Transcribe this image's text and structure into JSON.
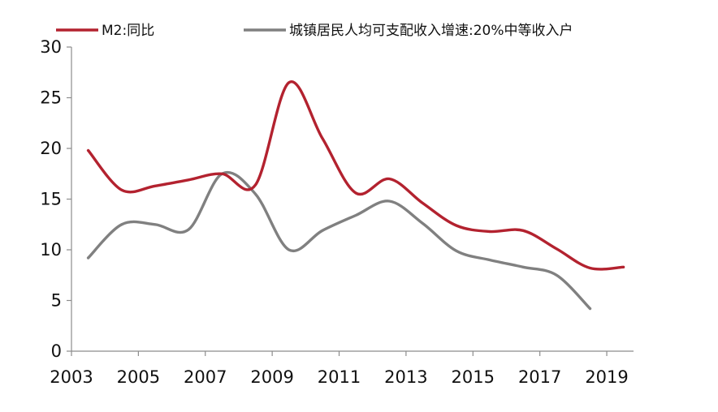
{
  "chart_data": {
    "type": "line",
    "title": "",
    "xlabel": "",
    "ylabel": "",
    "xlim": [
      2003,
      2019.8
    ],
    "ylim": [
      0,
      30
    ],
    "grid": false,
    "legend_position": "top",
    "x_ticks": [
      2003,
      2005,
      2007,
      2009,
      2011,
      2013,
      2015,
      2017,
      2019
    ],
    "y_ticks": [
      0,
      5,
      10,
      15,
      20,
      25,
      30
    ],
    "x_tick_labels": [
      "2003",
      "2005",
      "2007",
      "2009",
      "2011",
      "2013",
      "2015",
      "2017",
      "2019"
    ],
    "y_tick_labels": [
      "0",
      "5",
      "10",
      "15",
      "20",
      "25",
      "30"
    ],
    "series": [
      {
        "name": "M2:同比",
        "color": "#b3222f",
        "x": [
          2003.5,
          2004.5,
          2005.5,
          2006.5,
          2007.5,
          2008.5,
          2009.5,
          2010.5,
          2011.5,
          2012.5,
          2013.5,
          2014.5,
          2015.5,
          2016.5,
          2017.5,
          2018.5,
          2019.5
        ],
        "y": [
          19.8,
          15.9,
          16.3,
          16.9,
          17.5,
          16.4,
          26.5,
          21.0,
          15.6,
          17.0,
          14.6,
          12.4,
          11.8,
          11.9,
          10.1,
          8.2,
          8.3
        ]
      },
      {
        "name": "城镇居民人均可支配收入增速:20%中等收入户",
        "color": "#808080",
        "x": [
          2003.5,
          2004.5,
          2005.5,
          2006.5,
          2007.5,
          2008.5,
          2009.5,
          2010.5,
          2011.5,
          2012.5,
          2013.5,
          2014.5,
          2015.5,
          2016.5,
          2017.5,
          2018.5
        ],
        "y": [
          9.2,
          12.5,
          12.5,
          12.0,
          17.5,
          15.5,
          10.0,
          11.9,
          13.4,
          14.8,
          12.6,
          9.9,
          9.0,
          8.3,
          7.5,
          4.2
        ]
      }
    ]
  }
}
